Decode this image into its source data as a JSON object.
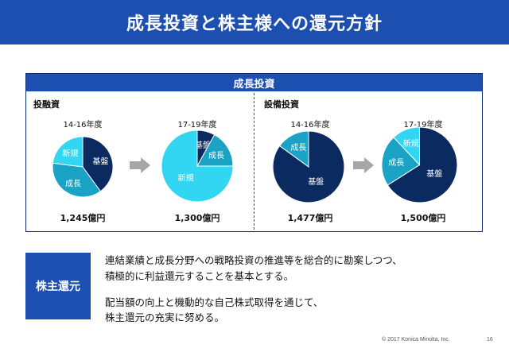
{
  "slide": {
    "title": "成長投資と株主様への還元方針",
    "panel_title": "成長投資",
    "footer": "© 2017 Konica Minolta, Inc.",
    "page_number": "16"
  },
  "colors": {
    "title_bar": "#1d4fb0",
    "kiban": "#0b2a5f",
    "seicho": "#1aa3c4",
    "shinki": "#33d6f2"
  },
  "chart_data": [
    {
      "type": "pie",
      "group": "投融資",
      "title": "14-16年度",
      "total_label": "1,245億円",
      "slices": [
        {
          "label": "基盤",
          "value": 40
        },
        {
          "label": "成長",
          "value": 37
        },
        {
          "label": "新規",
          "value": 23
        }
      ]
    },
    {
      "type": "pie",
      "group": "投融資",
      "title": "17-19年度",
      "total_label": "1,300億円",
      "slices": [
        {
          "label": "基盤",
          "value": 8
        },
        {
          "label": "成長",
          "value": 17
        },
        {
          "label": "新規",
          "value": 75
        }
      ]
    },
    {
      "type": "pie",
      "group": "設備投資",
      "title": "14-16年度",
      "total_label": "1,477億円",
      "slices": [
        {
          "label": "基盤",
          "value": 85
        },
        {
          "label": "成長",
          "value": 15
        }
      ]
    },
    {
      "type": "pie",
      "group": "設備投資",
      "title": "17-19年度",
      "total_label": "1,500億円",
      "slices": [
        {
          "label": "基盤",
          "value": 66
        },
        {
          "label": "成長",
          "value": 22
        },
        {
          "label": "新規",
          "value": 12
        }
      ]
    }
  ],
  "groups": {
    "left": "投融資",
    "right": "設備投資"
  },
  "shareholder": {
    "label": "株主還元",
    "line1": "連結業績と成長分野への戦略投資の推進等を総合的に勘案しつつ、",
    "line2": "積極的に利益還元することを基本とする。",
    "line3": "配当額の向上と機動的な自己株式取得を通じて、",
    "line4": "株主還元の充実に努める。"
  }
}
